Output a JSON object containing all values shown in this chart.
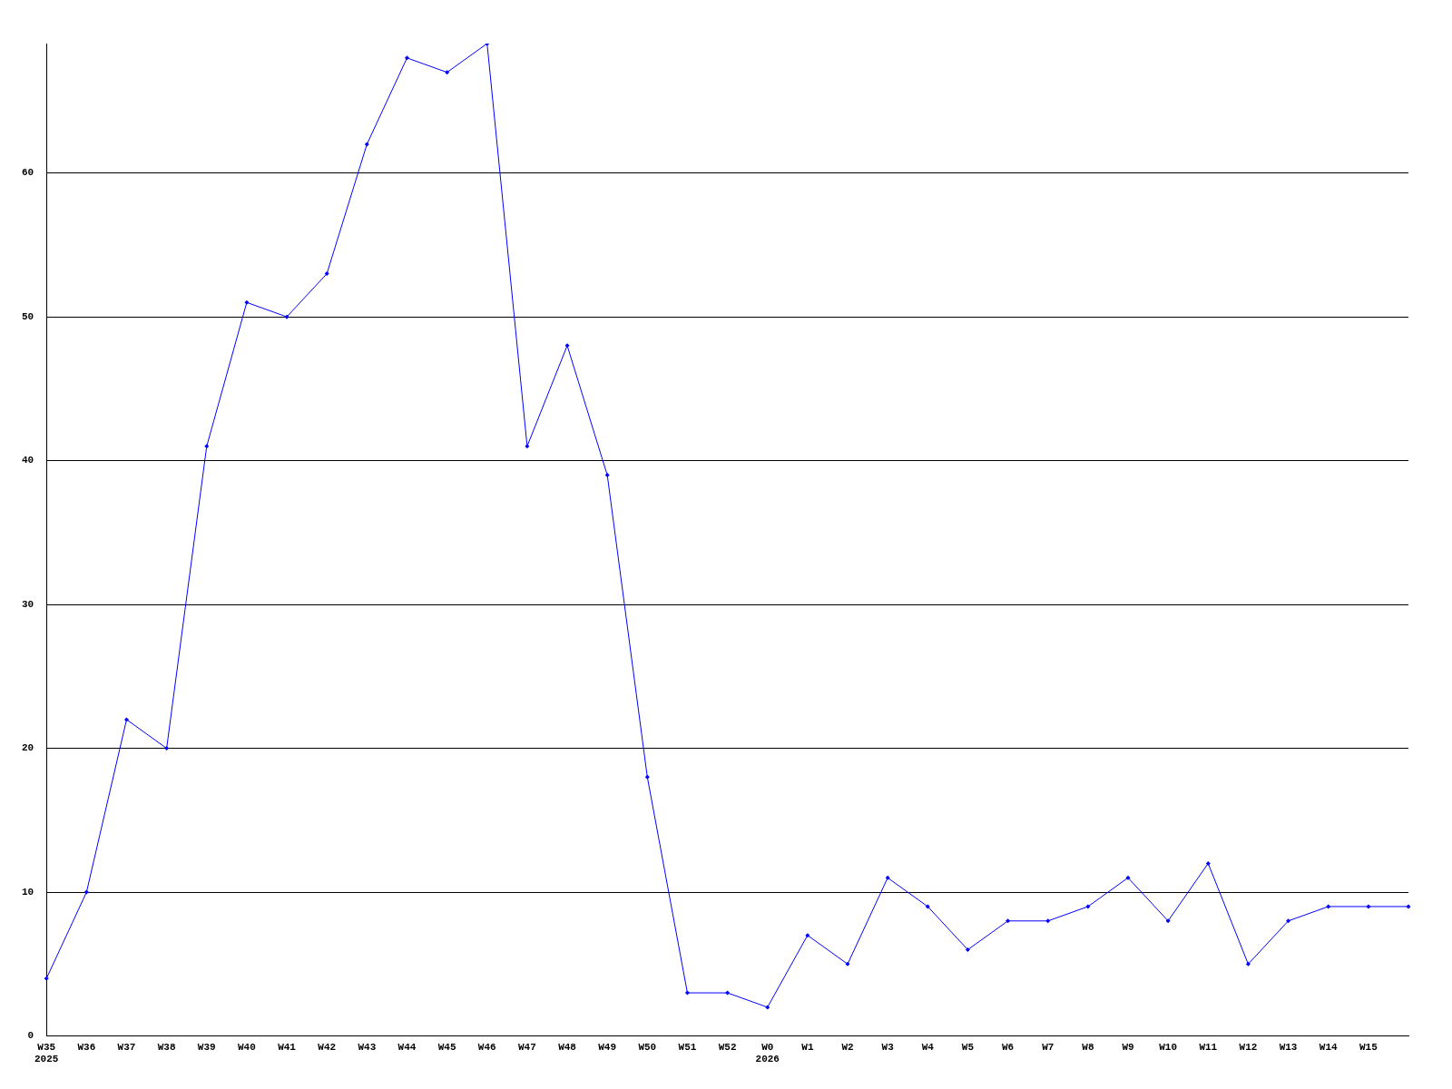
{
  "chart_data": {
    "type": "line",
    "categories": [
      "W35\n2025",
      "W36",
      "W37",
      "W38",
      "W39",
      "W40",
      "W41",
      "W42",
      "W43",
      "W44",
      "W45",
      "W46",
      "W47",
      "W48",
      "W49",
      "W50",
      "W51",
      "W52",
      "W0\n2026",
      "W1",
      "W2",
      "W3",
      "W4",
      "W5",
      "W6",
      "W7",
      "W8",
      "W9",
      "W10",
      "W11",
      "W12",
      "W13",
      "W14",
      "W15",
      null
    ],
    "series": [
      {
        "color": "#0000ff",
        "values": [
          4,
          10,
          22,
          20,
          41,
          51,
          50,
          53,
          62,
          68,
          67,
          69,
          41,
          48,
          39,
          18,
          3,
          3,
          2,
          7,
          5,
          11,
          9,
          6,
          8,
          8,
          9,
          11,
          8,
          12,
          5,
          8,
          9,
          9,
          9
        ]
      }
    ],
    "ylim": [
      0,
      69
    ],
    "yticks": [
      0,
      10,
      20,
      30,
      40,
      50,
      60
    ],
    "grid": "y",
    "legend": false,
    "marker": "diamond",
    "line_style": "solid"
  }
}
